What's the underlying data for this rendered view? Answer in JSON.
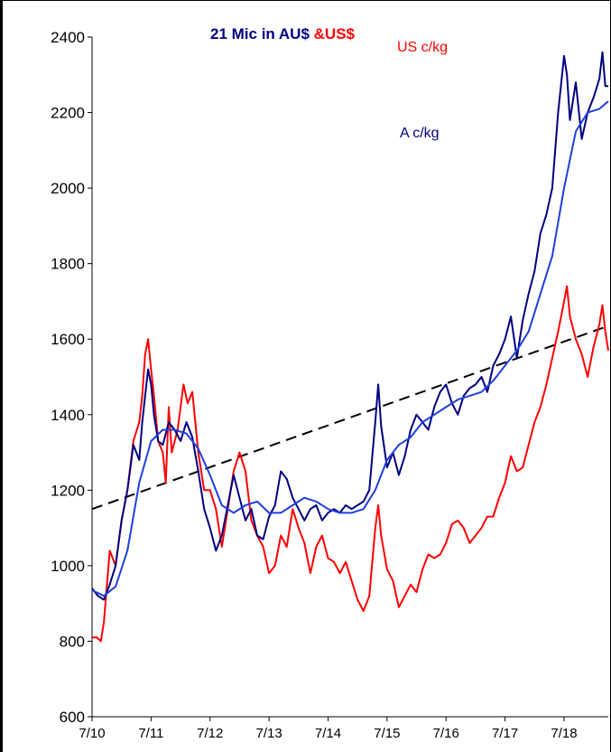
{
  "chart_data": {
    "type": "line",
    "title_part1": "21  Mic in AU$ ",
    "title_part2": "&US$",
    "annotations": {
      "us": "US c/kg",
      "au": "A c/kg"
    },
    "colors": {
      "au": "#000080",
      "au_ma": "#1f3fe0",
      "us": "#ff0000",
      "trend": "#000000",
      "title1": "#000080",
      "title2": "#ff0000"
    },
    "ylim": [
      600,
      2400
    ],
    "yticks": [
      "600",
      "800",
      "1000",
      "1200",
      "1400",
      "1600",
      "1800",
      "2000",
      "2200",
      "2400"
    ],
    "xlim": [
      0,
      8.75
    ],
    "xticks": [
      "7/10",
      "7/11",
      "7/12",
      "7/13",
      "7/14",
      "7/15",
      "7/16",
      "7/17",
      "7/18"
    ],
    "trend": [
      [
        0,
        1150
      ],
      [
        8.75,
        1635
      ]
    ],
    "series": [
      {
        "key": "us",
        "points": [
          [
            0,
            810
          ],
          [
            0.08,
            810
          ],
          [
            0.15,
            800
          ],
          [
            0.2,
            850
          ],
          [
            0.3,
            1040
          ],
          [
            0.4,
            1000
          ],
          [
            0.5,
            1120
          ],
          [
            0.6,
            1200
          ],
          [
            0.7,
            1330
          ],
          [
            0.8,
            1380
          ],
          [
            0.85,
            1450
          ],
          [
            0.9,
            1560
          ],
          [
            0.95,
            1600
          ],
          [
            1.0,
            1520
          ],
          [
            1.05,
            1450
          ],
          [
            1.12,
            1330
          ],
          [
            1.2,
            1300
          ],
          [
            1.25,
            1220
          ],
          [
            1.3,
            1420
          ],
          [
            1.35,
            1300
          ],
          [
            1.45,
            1360
          ],
          [
            1.55,
            1480
          ],
          [
            1.62,
            1430
          ],
          [
            1.7,
            1460
          ],
          [
            1.8,
            1300
          ],
          [
            1.9,
            1200
          ],
          [
            2.0,
            1200
          ],
          [
            2.1,
            1150
          ],
          [
            2.2,
            1050
          ],
          [
            2.3,
            1150
          ],
          [
            2.4,
            1250
          ],
          [
            2.5,
            1300
          ],
          [
            2.6,
            1250
          ],
          [
            2.7,
            1120
          ],
          [
            2.8,
            1080
          ],
          [
            2.9,
            1050
          ],
          [
            3.0,
            980
          ],
          [
            3.1,
            1000
          ],
          [
            3.2,
            1080
          ],
          [
            3.3,
            1050
          ],
          [
            3.4,
            1150
          ],
          [
            3.5,
            1100
          ],
          [
            3.6,
            1060
          ],
          [
            3.7,
            980
          ],
          [
            3.8,
            1050
          ],
          [
            3.9,
            1080
          ],
          [
            4.0,
            1020
          ],
          [
            4.1,
            1010
          ],
          [
            4.2,
            980
          ],
          [
            4.3,
            1010
          ],
          [
            4.4,
            960
          ],
          [
            4.5,
            910
          ],
          [
            4.6,
            880
          ],
          [
            4.65,
            900
          ],
          [
            4.7,
            920
          ],
          [
            4.8,
            1100
          ],
          [
            4.85,
            1160
          ],
          [
            4.9,
            1080
          ],
          [
            5.0,
            990
          ],
          [
            5.1,
            960
          ],
          [
            5.2,
            890
          ],
          [
            5.3,
            920
          ],
          [
            5.4,
            950
          ],
          [
            5.5,
            930
          ],
          [
            5.6,
            990
          ],
          [
            5.7,
            1030
          ],
          [
            5.8,
            1020
          ],
          [
            5.9,
            1030
          ],
          [
            6.0,
            1060
          ],
          [
            6.1,
            1110
          ],
          [
            6.2,
            1120
          ],
          [
            6.3,
            1100
          ],
          [
            6.4,
            1060
          ],
          [
            6.5,
            1080
          ],
          [
            6.6,
            1100
          ],
          [
            6.7,
            1130
          ],
          [
            6.8,
            1130
          ],
          [
            6.9,
            1180
          ],
          [
            7.0,
            1220
          ],
          [
            7.1,
            1290
          ],
          [
            7.2,
            1250
          ],
          [
            7.3,
            1260
          ],
          [
            7.4,
            1320
          ],
          [
            7.5,
            1380
          ],
          [
            7.6,
            1420
          ],
          [
            7.7,
            1480
          ],
          [
            7.8,
            1550
          ],
          [
            7.9,
            1620
          ],
          [
            8.0,
            1700
          ],
          [
            8.05,
            1740
          ],
          [
            8.1,
            1660
          ],
          [
            8.2,
            1600
          ],
          [
            8.3,
            1560
          ],
          [
            8.4,
            1500
          ],
          [
            8.5,
            1580
          ],
          [
            8.6,
            1640
          ],
          [
            8.65,
            1690
          ],
          [
            8.7,
            1620
          ],
          [
            8.75,
            1570
          ]
        ]
      },
      {
        "key": "au",
        "points": [
          [
            0,
            940
          ],
          [
            0.1,
            920
          ],
          [
            0.2,
            910
          ],
          [
            0.3,
            950
          ],
          [
            0.4,
            1000
          ],
          [
            0.5,
            1120
          ],
          [
            0.6,
            1200
          ],
          [
            0.7,
            1320
          ],
          [
            0.8,
            1280
          ],
          [
            0.85,
            1380
          ],
          [
            0.9,
            1450
          ],
          [
            0.95,
            1520
          ],
          [
            1.0,
            1480
          ],
          [
            1.05,
            1400
          ],
          [
            1.12,
            1330
          ],
          [
            1.2,
            1320
          ],
          [
            1.3,
            1380
          ],
          [
            1.4,
            1360
          ],
          [
            1.5,
            1330
          ],
          [
            1.6,
            1380
          ],
          [
            1.7,
            1340
          ],
          [
            1.8,
            1250
          ],
          [
            1.9,
            1150
          ],
          [
            2.0,
            1100
          ],
          [
            2.1,
            1040
          ],
          [
            2.2,
            1080
          ],
          [
            2.3,
            1160
          ],
          [
            2.4,
            1240
          ],
          [
            2.5,
            1180
          ],
          [
            2.6,
            1120
          ],
          [
            2.7,
            1150
          ],
          [
            2.8,
            1080
          ],
          [
            2.9,
            1070
          ],
          [
            3.0,
            1130
          ],
          [
            3.1,
            1160
          ],
          [
            3.2,
            1250
          ],
          [
            3.3,
            1230
          ],
          [
            3.4,
            1180
          ],
          [
            3.5,
            1150
          ],
          [
            3.6,
            1120
          ],
          [
            3.7,
            1150
          ],
          [
            3.8,
            1160
          ],
          [
            3.9,
            1120
          ],
          [
            4.0,
            1140
          ],
          [
            4.1,
            1150
          ],
          [
            4.2,
            1140
          ],
          [
            4.3,
            1160
          ],
          [
            4.4,
            1150
          ],
          [
            4.5,
            1160
          ],
          [
            4.6,
            1170
          ],
          [
            4.7,
            1200
          ],
          [
            4.8,
            1380
          ],
          [
            4.85,
            1480
          ],
          [
            4.9,
            1370
          ],
          [
            5.0,
            1260
          ],
          [
            5.1,
            1300
          ],
          [
            5.2,
            1240
          ],
          [
            5.3,
            1290
          ],
          [
            5.4,
            1360
          ],
          [
            5.5,
            1400
          ],
          [
            5.6,
            1380
          ],
          [
            5.7,
            1360
          ],
          [
            5.8,
            1420
          ],
          [
            5.9,
            1460
          ],
          [
            6.0,
            1480
          ],
          [
            6.1,
            1430
          ],
          [
            6.2,
            1400
          ],
          [
            6.3,
            1450
          ],
          [
            6.4,
            1470
          ],
          [
            6.5,
            1480
          ],
          [
            6.6,
            1500
          ],
          [
            6.7,
            1460
          ],
          [
            6.8,
            1530
          ],
          [
            6.9,
            1560
          ],
          [
            7.0,
            1600
          ],
          [
            7.1,
            1660
          ],
          [
            7.2,
            1550
          ],
          [
            7.3,
            1650
          ],
          [
            7.4,
            1720
          ],
          [
            7.5,
            1780
          ],
          [
            7.6,
            1880
          ],
          [
            7.7,
            1930
          ],
          [
            7.8,
            2000
          ],
          [
            7.9,
            2200
          ],
          [
            8.0,
            2350
          ],
          [
            8.05,
            2300
          ],
          [
            8.1,
            2180
          ],
          [
            8.2,
            2280
          ],
          [
            8.3,
            2130
          ],
          [
            8.4,
            2200
          ],
          [
            8.5,
            2240
          ],
          [
            8.6,
            2290
          ],
          [
            8.65,
            2360
          ],
          [
            8.7,
            2270
          ],
          [
            8.75,
            2270
          ]
        ]
      },
      {
        "key": "au_ma",
        "points": [
          [
            0,
            935
          ],
          [
            0.2,
            920
          ],
          [
            0.4,
            945
          ],
          [
            0.6,
            1040
          ],
          [
            0.8,
            1220
          ],
          [
            1.0,
            1330
          ],
          [
            1.2,
            1360
          ],
          [
            1.4,
            1360
          ],
          [
            1.6,
            1350
          ],
          [
            1.8,
            1310
          ],
          [
            2.0,
            1240
          ],
          [
            2.2,
            1160
          ],
          [
            2.4,
            1140
          ],
          [
            2.6,
            1160
          ],
          [
            2.8,
            1170
          ],
          [
            3.0,
            1140
          ],
          [
            3.2,
            1140
          ],
          [
            3.4,
            1160
          ],
          [
            3.6,
            1180
          ],
          [
            3.8,
            1170
          ],
          [
            4.0,
            1150
          ],
          [
            4.2,
            1140
          ],
          [
            4.4,
            1140
          ],
          [
            4.6,
            1150
          ],
          [
            4.8,
            1200
          ],
          [
            5.0,
            1280
          ],
          [
            5.2,
            1320
          ],
          [
            5.4,
            1340
          ],
          [
            5.6,
            1380
          ],
          [
            5.8,
            1400
          ],
          [
            6.0,
            1420
          ],
          [
            6.2,
            1440
          ],
          [
            6.4,
            1450
          ],
          [
            6.6,
            1460
          ],
          [
            6.8,
            1490
          ],
          [
            7.0,
            1530
          ],
          [
            7.2,
            1570
          ],
          [
            7.4,
            1620
          ],
          [
            7.6,
            1720
          ],
          [
            7.8,
            1820
          ],
          [
            8.0,
            2000
          ],
          [
            8.2,
            2150
          ],
          [
            8.4,
            2200
          ],
          [
            8.6,
            2210
          ],
          [
            8.75,
            2230
          ]
        ]
      }
    ]
  }
}
